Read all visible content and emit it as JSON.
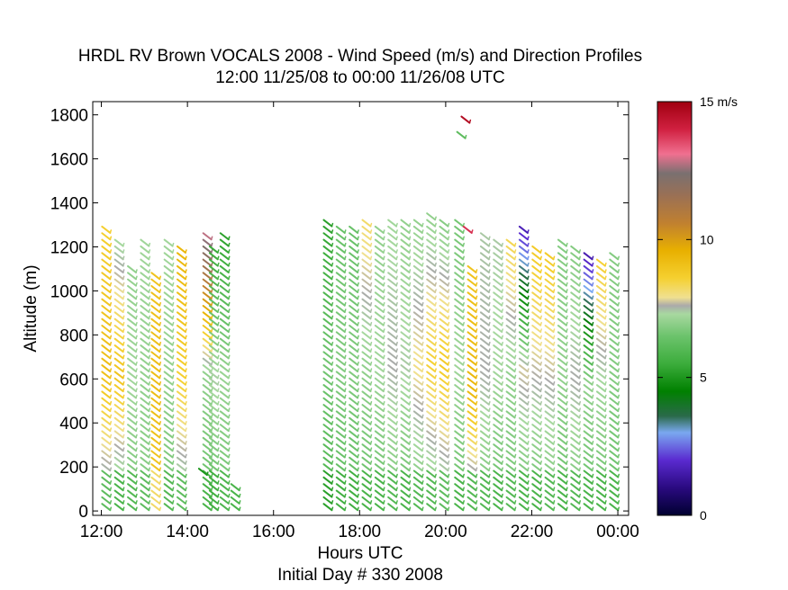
{
  "chart_data": {
    "type": "wind_profile",
    "title": "HRDL RV Brown VOCALS 2008 - Wind Speed (m/s) and Direction Profiles",
    "subtitle": "12:00 11/25/08 to 00:00 11/26/08  UTC",
    "xlabel": "Hours UTC",
    "xlabel2": "Initial Day # 330  2008",
    "ylabel": "Altitude (m)",
    "xlim": [
      11.8,
      24.25
    ],
    "ylim": [
      -20,
      1860
    ],
    "x_ticks": [
      12,
      14,
      16,
      18,
      20,
      22,
      24
    ],
    "x_tick_labels": [
      "12:00",
      "14:00",
      "16:00",
      "18:00",
      "20:00",
      "22:00",
      "00:00"
    ],
    "y_ticks": [
      0,
      200,
      400,
      600,
      800,
      1000,
      1200,
      1400,
      1600,
      1800
    ],
    "colorbar": {
      "range": [
        0,
        15
      ],
      "ticks": [
        0,
        5,
        10,
        15
      ],
      "tick_labels": [
        "0",
        "5",
        "10",
        "15 m/s"
      ]
    },
    "profiles": [
      {
        "t": 12.1,
        "top": 1300,
        "base_speed": 6.8,
        "mid_speed": 9.2,
        "top_speed": 8.6
      },
      {
        "t": 12.4,
        "top": 1240,
        "base_speed": 6.4,
        "mid_speed": 9.0,
        "top_speed": 7.2
      },
      {
        "t": 12.7,
        "top": 1120,
        "base_speed": 6.6,
        "mid_speed": 7.2,
        "top_speed": 7.0
      },
      {
        "t": 13.0,
        "top": 1240,
        "base_speed": 6.8,
        "mid_speed": 7.0,
        "top_speed": 7.2
      },
      {
        "t": 13.25,
        "top": 1080,
        "base_speed": 8.8,
        "mid_speed": 9.2,
        "top_speed": 9.0
      },
      {
        "t": 13.55,
        "top": 1220,
        "base_speed": 6.6,
        "mid_speed": 7.0,
        "top_speed": 7.2
      },
      {
        "t": 13.85,
        "top": 1200,
        "base_speed": 6.8,
        "mid_speed": 8.6,
        "top_speed": 9.4
      },
      {
        "t": 14.45,
        "top": 1250,
        "base_speed": 6.4,
        "mid_speed": 7.0,
        "top_speed": 12.8
      },
      {
        "t": 14.6,
        "top": 1210,
        "base_speed": 6.2,
        "mid_speed": 7.4,
        "top_speed": 5.4
      },
      {
        "t": 14.85,
        "top": 1260,
        "base_speed": 6.5,
        "mid_speed": 7.1,
        "top_speed": 5.2
      },
      {
        "t": 15.1,
        "top": 120,
        "base_speed": 6.4,
        "mid_speed": 6.4,
        "top_speed": 6.6
      },
      {
        "t": 17.25,
        "top": 1320,
        "base_speed": 5.8,
        "mid_speed": 6.6,
        "top_speed": 5.2
      },
      {
        "t": 17.55,
        "top": 1300,
        "base_speed": 6.2,
        "mid_speed": 6.8,
        "top_speed": 6.4
      },
      {
        "t": 17.85,
        "top": 1290,
        "base_speed": 6.2,
        "mid_speed": 6.8,
        "top_speed": 6.4
      },
      {
        "t": 18.15,
        "top": 1320,
        "base_speed": 6.4,
        "mid_speed": 7.0,
        "top_speed": 8.2
      },
      {
        "t": 18.45,
        "top": 1300,
        "base_speed": 6.4,
        "mid_speed": 7.2,
        "top_speed": 7.0
      },
      {
        "t": 18.75,
        "top": 1320,
        "base_speed": 6.6,
        "mid_speed": 7.6,
        "top_speed": 7.2
      },
      {
        "t": 19.05,
        "top": 1310,
        "base_speed": 6.4,
        "mid_speed": 7.4,
        "top_speed": 7.0
      },
      {
        "t": 19.35,
        "top": 1320,
        "base_speed": 6.6,
        "mid_speed": 8.0,
        "top_speed": 7.0
      },
      {
        "t": 19.65,
        "top": 1340,
        "base_speed": 6.6,
        "mid_speed": 8.6,
        "top_speed": 7.0
      },
      {
        "t": 19.95,
        "top": 1330,
        "base_speed": 6.8,
        "mid_speed": 8.8,
        "top_speed": 6.8
      },
      {
        "t": 20.3,
        "top": 1310,
        "base_speed": 6.4,
        "mid_speed": 7.2,
        "top_speed": 6.6
      },
      {
        "t": 20.6,
        "top": 1100,
        "base_speed": 6.6,
        "mid_speed": 9.4,
        "top_speed": 9.0
      },
      {
        "t": 20.9,
        "top": 1270,
        "base_speed": 6.6,
        "mid_speed": 7.6,
        "top_speed": 7.4
      },
      {
        "t": 21.2,
        "top": 1240,
        "base_speed": 6.4,
        "mid_speed": 7.2,
        "top_speed": 7.4
      },
      {
        "t": 21.5,
        "top": 1240,
        "base_speed": 6.6,
        "mid_speed": 7.0,
        "top_speed": 8.4
      },
      {
        "t": 21.8,
        "top": 1290,
        "base_speed": 6.4,
        "mid_speed": 7.8,
        "top_speed": 1.6
      },
      {
        "t": 22.1,
        "top": 1200,
        "base_speed": 6.4,
        "mid_speed": 7.6,
        "top_speed": 8.8
      },
      {
        "t": 22.4,
        "top": 1180,
        "base_speed": 6.6,
        "mid_speed": 7.6,
        "top_speed": 8.8
      },
      {
        "t": 22.7,
        "top": 1220,
        "base_speed": 6.4,
        "mid_speed": 7.0,
        "top_speed": 6.8
      },
      {
        "t": 23.0,
        "top": 1200,
        "base_speed": 6.6,
        "mid_speed": 7.6,
        "top_speed": 6.8
      },
      {
        "t": 23.3,
        "top": 1160,
        "base_speed": 6.4,
        "mid_speed": 7.0,
        "top_speed": 1.6
      },
      {
        "t": 23.6,
        "top": 1140,
        "base_speed": 6.4,
        "mid_speed": 7.2,
        "top_speed": 8.6
      },
      {
        "t": 23.9,
        "top": 1180,
        "base_speed": 6.4,
        "mid_speed": 6.8,
        "top_speed": 6.8
      }
    ],
    "isolated_barbs": [
      {
        "t": 20.45,
        "alt": 1780,
        "speed": 14.6
      },
      {
        "t": 20.35,
        "alt": 1710,
        "speed": 6.2
      },
      {
        "t": 20.5,
        "alt": 1280,
        "speed": 13.8
      },
      {
        "t": 14.35,
        "alt": 180,
        "speed": 5.0
      }
    ],
    "colormap": [
      {
        "v": 0.0,
        "c": "#000030"
      },
      {
        "v": 1.0,
        "c": "#2a0a80"
      },
      {
        "v": 2.0,
        "c": "#5a2ad0"
      },
      {
        "v": 3.0,
        "c": "#7aa8f0"
      },
      {
        "v": 3.6,
        "c": "#2a6a4a"
      },
      {
        "v": 4.5,
        "c": "#008000"
      },
      {
        "v": 5.5,
        "c": "#3cad3c"
      },
      {
        "v": 6.5,
        "c": "#6cc36c"
      },
      {
        "v": 7.3,
        "c": "#a8d8a0"
      },
      {
        "v": 7.6,
        "c": "#aaaaaa"
      },
      {
        "v": 7.9,
        "c": "#f0e090"
      },
      {
        "v": 8.6,
        "c": "#f5d030"
      },
      {
        "v": 9.6,
        "c": "#e8b000"
      },
      {
        "v": 10.6,
        "c": "#c08030"
      },
      {
        "v": 11.6,
        "c": "#9a7055"
      },
      {
        "v": 12.4,
        "c": "#7a7070"
      },
      {
        "v": 13.1,
        "c": "#f07090"
      },
      {
        "v": 14.0,
        "c": "#d02040"
      },
      {
        "v": 15.0,
        "c": "#a00010"
      }
    ]
  }
}
